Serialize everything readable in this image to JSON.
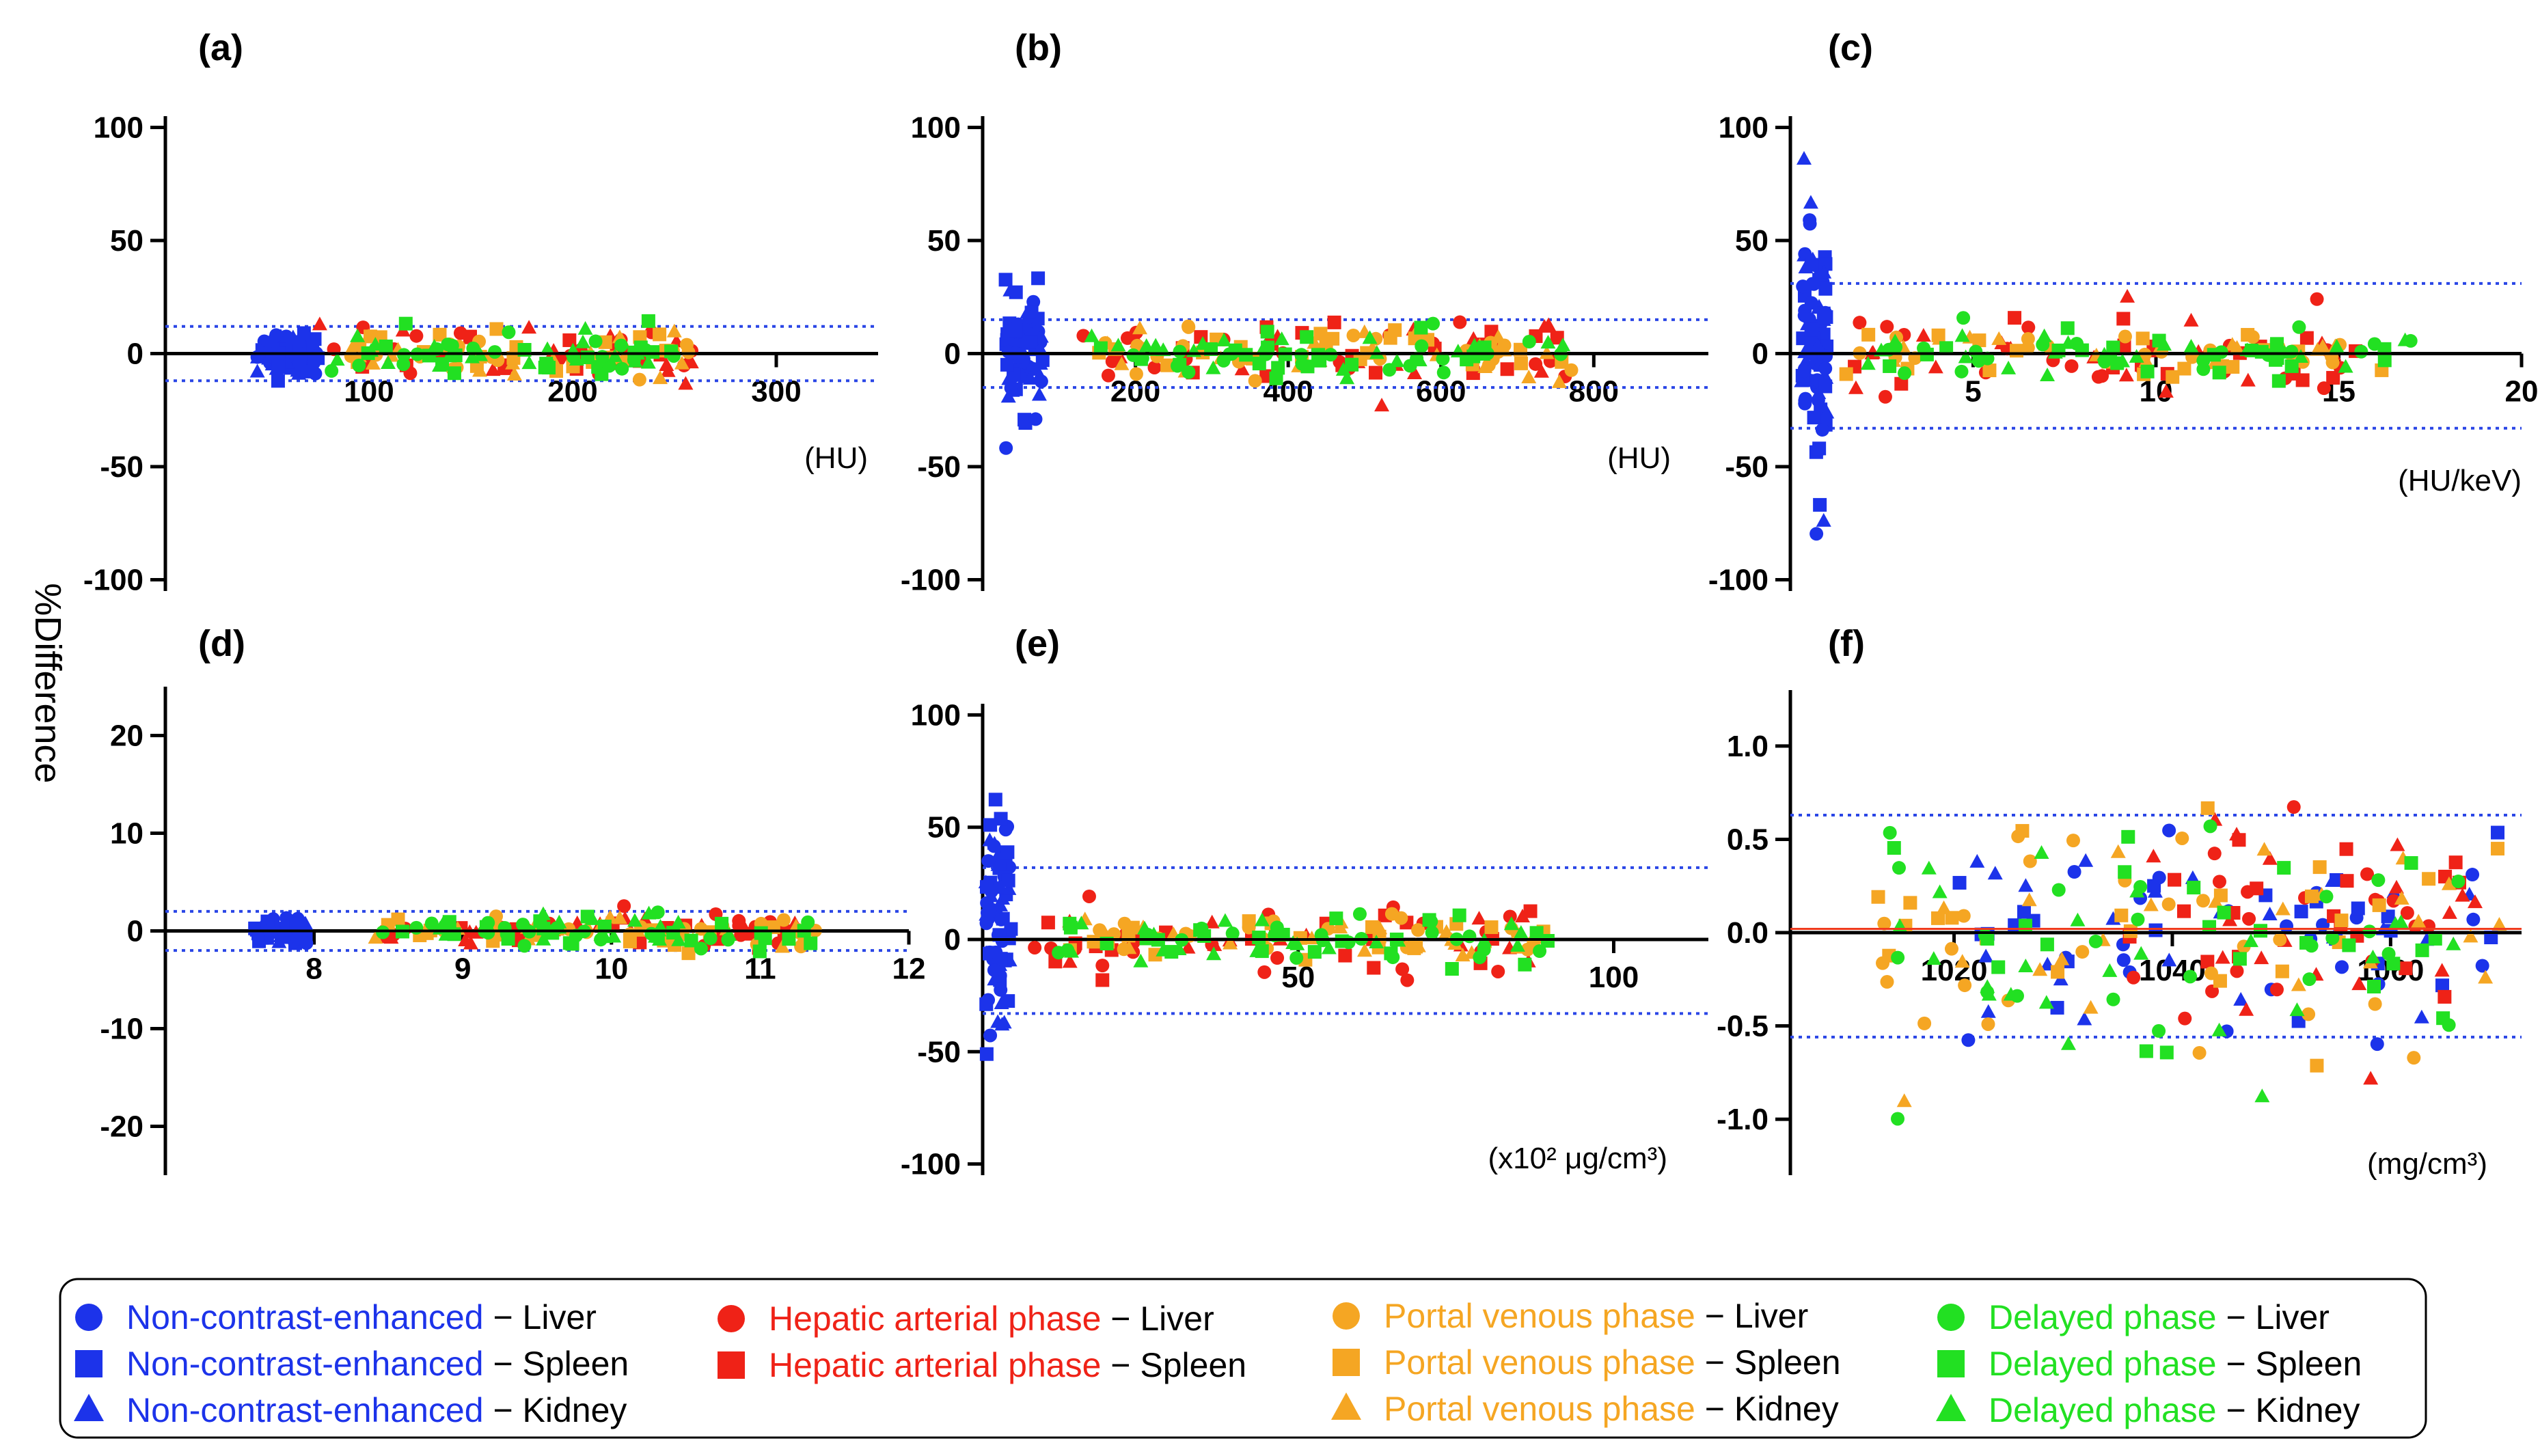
{
  "figure": {
    "ylabel": "%Difference"
  },
  "colors": {
    "non_contrast": "#1c33ea",
    "arterial": "#ef2217",
    "portal": "#f5a623",
    "delayed": "#22e022",
    "zero_line": "#000000",
    "bias_line": "#ef3b1e",
    "loa_line": "#2a46e6"
  },
  "legend": {
    "entries": [
      {
        "phase": "Non-contrast-enhanced",
        "organ": "Liver",
        "marker": "circle",
        "color_key": "non_contrast"
      },
      {
        "phase": "Non-contrast-enhanced",
        "organ": "Spleen",
        "marker": "square",
        "color_key": "non_contrast"
      },
      {
        "phase": "Non-contrast-enhanced",
        "organ": "Kidney",
        "marker": "triangle",
        "color_key": "non_contrast"
      },
      {
        "phase": "Hepatic arterial phase",
        "organ": "Liver",
        "marker": "circle",
        "color_key": "arterial"
      },
      {
        "phase": "Hepatic arterial phase",
        "organ": "Spleen",
        "marker": "square",
        "color_key": "arterial"
      },
      {
        "phase": "Portal venous phase",
        "organ": "Liver",
        "marker": "circle",
        "color_key": "portal"
      },
      {
        "phase": "Portal venous phase",
        "organ": "Spleen",
        "marker": "square",
        "color_key": "portal"
      },
      {
        "phase": "Portal  venous phase",
        "organ": "Kidney",
        "marker": "triangle",
        "color_key": "portal"
      },
      {
        "phase": "Delayed phase",
        "organ": "Liver",
        "marker": "circle",
        "color_key": "delayed"
      },
      {
        "phase": "Delayed phase",
        "organ": "Spleen",
        "marker": "square",
        "color_key": "delayed"
      },
      {
        "phase": "Delayed phase",
        "organ": "Kidney",
        "marker": "triangle",
        "color_key": "delayed"
      }
    ],
    "dash": "−"
  },
  "chart_data": [
    {
      "type": "scatter",
      "panel": "(a)",
      "unit": "(HU)",
      "ylabel": "%Difference",
      "xlim": [
        0,
        350
      ],
      "ylim": [
        -105,
        105
      ],
      "xticks": [
        100,
        200,
        300
      ],
      "xtick_labels": [
        "100",
        "200",
        "300"
      ],
      "yticks": [
        -100,
        -50,
        0,
        50,
        100
      ],
      "ytick_labels": [
        "-100",
        "-50",
        "0",
        "50",
        "100"
      ],
      "bias": 0,
      "loa": [
        12,
        -12
      ],
      "series": [
        {
          "name": "Non-contrast-enhanced",
          "color_key": "non_contrast",
          "x_range": [
            45,
            75
          ],
          "y_sd": 5,
          "count": 70
        },
        {
          "name": "Hepatic arterial phase",
          "color_key": "arterial",
          "x_range": [
            75,
            260
          ],
          "y_sd": 6,
          "count": 45
        },
        {
          "name": "Portal venous phase",
          "color_key": "portal",
          "x_range": [
            90,
            260
          ],
          "y_sd": 5,
          "count": 55
        },
        {
          "name": "Delayed phase",
          "color_key": "delayed",
          "x_range": [
            80,
            250
          ],
          "y_sd": 5,
          "count": 60
        }
      ]
    },
    {
      "type": "scatter",
      "panel": "(b)",
      "unit": "(HU)",
      "ylabel": "%Difference",
      "xlim": [
        0,
        950
      ],
      "ylim": [
        -105,
        105
      ],
      "xticks": [
        200,
        400,
        600,
        800
      ],
      "xtick_labels": [
        "200",
        "400",
        "600",
        "800"
      ],
      "yticks": [
        -100,
        -50,
        0,
        50,
        100
      ],
      "ytick_labels": [
        "-100",
        "-50",
        "0",
        "50",
        "100"
      ],
      "bias": 0,
      "loa": [
        15,
        -15
      ],
      "series": [
        {
          "name": "Non-contrast-enhanced",
          "color_key": "non_contrast",
          "x_range": [
            30,
            80
          ],
          "y_sd": 12,
          "count": 75
        },
        {
          "name": "Hepatic arterial phase",
          "color_key": "arterial",
          "x_range": [
            130,
            780
          ],
          "y_sd": 8,
          "count": 55
        },
        {
          "name": "Portal venous phase",
          "color_key": "portal",
          "x_range": [
            150,
            790
          ],
          "y_sd": 5,
          "count": 65
        },
        {
          "name": "Delayed phase",
          "color_key": "delayed",
          "x_range": [
            140,
            760
          ],
          "y_sd": 6,
          "count": 70
        }
      ]
    },
    {
      "type": "scatter",
      "panel": "(c)",
      "unit": "(HU/keV)",
      "ylabel": "%Difference",
      "xlim": [
        0,
        20
      ],
      "ylim": [
        -105,
        105
      ],
      "xticks": [
        5,
        10,
        15,
        20
      ],
      "xtick_labels": [
        "5",
        "10",
        "15",
        "20"
      ],
      "yticks": [
        -100,
        -50,
        0,
        50,
        100
      ],
      "ytick_labels": [
        "-100",
        "-50",
        "0",
        "50",
        "100"
      ],
      "bias": 0,
      "loa": [
        31,
        -33
      ],
      "series": [
        {
          "name": "Non-contrast-enhanced",
          "color_key": "non_contrast",
          "x_range": [
            0.3,
            1.0
          ],
          "y_sd": 28,
          "count": 85
        },
        {
          "name": "Hepatic arterial phase",
          "color_key": "arterial",
          "x_range": [
            1.5,
            16.5
          ],
          "y_sd": 10,
          "count": 55
        },
        {
          "name": "Portal venous phase",
          "color_key": "portal",
          "x_range": [
            1.5,
            16.5
          ],
          "y_sd": 5,
          "count": 55
        },
        {
          "name": "Delayed phase",
          "color_key": "delayed",
          "x_range": [
            2.0,
            17.0
          ],
          "y_sd": 5,
          "count": 65
        }
      ]
    },
    {
      "type": "scatter",
      "panel": "(d)",
      "unit": "",
      "ylabel": "%Difference",
      "xlim": [
        7.0,
        12.0
      ],
      "ylim": [
        -25,
        25
      ],
      "xticks": [
        8,
        9,
        10,
        11,
        12
      ],
      "xtick_labels": [
        "8",
        "9",
        "10",
        "11",
        "12"
      ],
      "yticks": [
        -20,
        -10,
        0,
        10,
        20
      ],
      "ytick_labels": [
        "-20",
        "-10",
        "0",
        "10",
        "20"
      ],
      "bias": 0,
      "loa": [
        2,
        -2
      ],
      "series": [
        {
          "name": "Non-contrast-enhanced",
          "color_key": "non_contrast",
          "x_range": [
            7.6,
            7.95
          ],
          "y_sd": 0.6,
          "count": 55
        },
        {
          "name": "Hepatic arterial phase",
          "color_key": "arterial",
          "x_range": [
            8.2,
            11.3
          ],
          "y_sd": 1.0,
          "count": 50
        },
        {
          "name": "Portal venous phase",
          "color_key": "portal",
          "x_range": [
            8.4,
            11.4
          ],
          "y_sd": 0.8,
          "count": 60
        },
        {
          "name": "Delayed phase",
          "color_key": "delayed",
          "x_range": [
            8.4,
            11.4
          ],
          "y_sd": 0.8,
          "count": 65
        }
      ]
    },
    {
      "type": "scatter",
      "panel": "(e)",
      "unit": "(x10² μg/cm³)",
      "ylabel": "%Difference",
      "xlim": [
        0,
        115
      ],
      "ylim": [
        -105,
        105
      ],
      "xticks": [
        50,
        100
      ],
      "xtick_labels": [
        "50",
        "100"
      ],
      "yticks": [
        -100,
        -50,
        0,
        50,
        100
      ],
      "ytick_labels": [
        "-100",
        "-50",
        "0",
        "50",
        "100"
      ],
      "bias": 0,
      "loa": [
        32,
        -33
      ],
      "series": [
        {
          "name": "Non-contrast-enhanced",
          "color_key": "non_contrast",
          "x_range": [
            0.5,
            4.5
          ],
          "y_sd": 28,
          "count": 85
        },
        {
          "name": "Hepatic arterial phase",
          "color_key": "arterial",
          "x_range": [
            8,
            90
          ],
          "y_sd": 9,
          "count": 55
        },
        {
          "name": "Portal venous phase",
          "color_key": "portal",
          "x_range": [
            10,
            90
          ],
          "y_sd": 5,
          "count": 60
        },
        {
          "name": "Delayed phase",
          "color_key": "delayed",
          "x_range": [
            10,
            90
          ],
          "y_sd": 5,
          "count": 65
        }
      ]
    },
    {
      "type": "scatter",
      "panel": "(f)",
      "unit": "(mg/cm³)",
      "ylabel": "%Difference",
      "xlim": [
        1005,
        1072
      ],
      "ylim": [
        -1.3,
        1.3
      ],
      "xticks": [
        1020,
        1040,
        1060
      ],
      "xtick_labels": [
        "1020",
        "1040",
        "1060"
      ],
      "yticks": [
        -1.0,
        -0.5,
        0.0,
        0.5,
        1.0
      ],
      "ytick_labels": [
        "-1.0",
        "-0.5",
        "0.0",
        "0.5",
        "1.0"
      ],
      "bias": 0.02,
      "loa": [
        0.63,
        -0.56
      ],
      "series": [
        {
          "name": "Non-contrast-enhanced",
          "color_key": "non_contrast",
          "x_range": [
            1020,
            1070
          ],
          "y_sd": 0.25,
          "count": 70
        },
        {
          "name": "Hepatic arterial phase",
          "color_key": "arterial",
          "x_range": [
            1036,
            1068
          ],
          "y_sd": 0.3,
          "count": 55
        },
        {
          "name": "Portal venous phase",
          "color_key": "portal",
          "x_range": [
            1013,
            1070
          ],
          "y_sd": 0.32,
          "count": 70
        },
        {
          "name": "Delayed phase",
          "color_key": "delayed",
          "x_range": [
            1013,
            1068
          ],
          "y_sd": 0.3,
          "count": 70
        }
      ]
    }
  ]
}
